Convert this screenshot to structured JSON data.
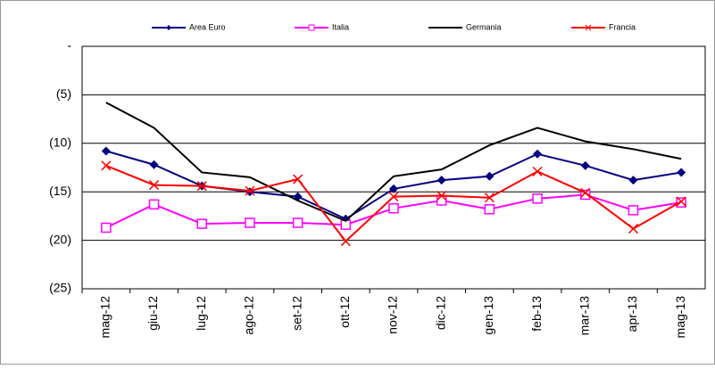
{
  "chart_data": {
    "type": "line",
    "categories": [
      "mag-12",
      "giu-12",
      "lug-12",
      "ago-12",
      "set-12",
      "ott-12",
      "nov-12",
      "dic-12",
      "gen-13",
      "feb-13",
      "mar-13",
      "apr-13",
      "mag-13"
    ],
    "series": [
      {
        "name": "Area Euro",
        "color": "#000080",
        "marker": "diamond",
        "values": [
          -10.8,
          -12.2,
          -14.4,
          -15.0,
          -15.5,
          -17.8,
          -14.7,
          -13.8,
          -13.4,
          -11.1,
          -12.3,
          -13.8,
          -13.0
        ]
      },
      {
        "name": "Italia",
        "color": "#ff00ff",
        "marker": "square",
        "values": [
          -18.7,
          -16.3,
          -18.3,
          -18.2,
          -18.2,
          -18.4,
          -16.7,
          -15.9,
          -16.8,
          -15.7,
          -15.3,
          -16.9,
          -16.1
        ]
      },
      {
        "name": "Germania",
        "color": "#000000",
        "marker": "none",
        "values": [
          -5.8,
          -8.4,
          -13.0,
          -13.5,
          -15.9,
          -18.0,
          -13.4,
          -12.7,
          -10.2,
          -8.4,
          -9.8,
          -10.6,
          -11.6
        ]
      },
      {
        "name": "Francia",
        "color": "#ff0000",
        "marker": "x",
        "values": [
          -12.3,
          -14.3,
          -14.4,
          -14.9,
          -13.7,
          -20.1,
          -15.5,
          -15.4,
          -15.6,
          -12.9,
          -15.1,
          -18.8,
          -16.0
        ]
      }
    ],
    "ylim": [
      -25,
      0
    ],
    "yticks": [
      {
        "value": 0,
        "label": "-"
      },
      {
        "value": -5,
        "label": "(5)"
      },
      {
        "value": -10,
        "label": "(10)"
      },
      {
        "value": -15,
        "label": "(15)"
      },
      {
        "value": -20,
        "label": "(20)"
      },
      {
        "value": -25,
        "label": "(25)"
      }
    ],
    "grid": true,
    "legend": "top"
  }
}
